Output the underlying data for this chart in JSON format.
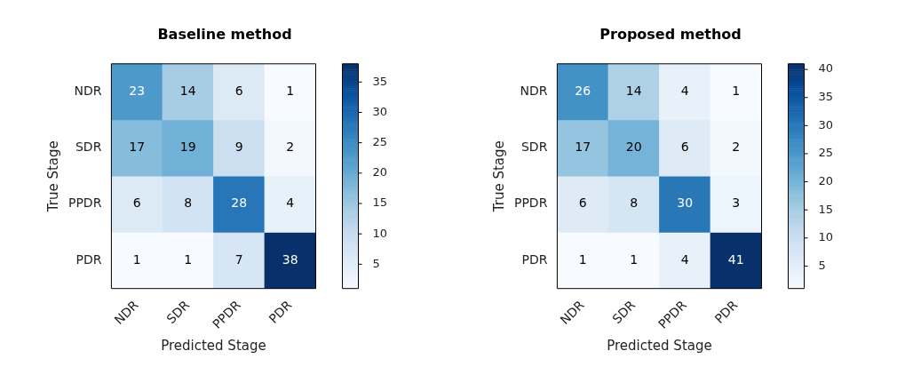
{
  "chart_data": [
    {
      "type": "heatmap",
      "title": "Baseline method",
      "xlabel": "Predicted Stage",
      "ylabel": "True Stage",
      "categories": [
        "NDR",
        "SDR",
        "PPDR",
        "PDR"
      ],
      "y_categories": [
        "NDR",
        "SDR",
        "PPDR",
        "PDR"
      ],
      "cells": [
        [
          23,
          14,
          6,
          1
        ],
        [
          17,
          19,
          9,
          2
        ],
        [
          6,
          8,
          28,
          4
        ],
        [
          1,
          1,
          7,
          38
        ]
      ],
      "clim": [
        1,
        38
      ],
      "cticks": [
        5,
        10,
        15,
        20,
        25,
        30,
        35
      ],
      "data_labels": true
    },
    {
      "type": "heatmap",
      "title": "Proposed method",
      "xlabel": "Predicted Stage",
      "ylabel": "True Stage",
      "categories": [
        "NDR",
        "SDR",
        "PPDR",
        "PDR"
      ],
      "y_categories": [
        "NDR",
        "SDR",
        "PPDR",
        "PDR"
      ],
      "cells": [
        [
          26,
          14,
          4,
          1
        ],
        [
          17,
          20,
          6,
          2
        ],
        [
          6,
          8,
          30,
          3
        ],
        [
          1,
          1,
          4,
          41
        ]
      ],
      "clim": [
        1,
        41
      ],
      "cticks": [
        5,
        10,
        15,
        20,
        25,
        30,
        35,
        40
      ],
      "data_labels": true
    }
  ]
}
